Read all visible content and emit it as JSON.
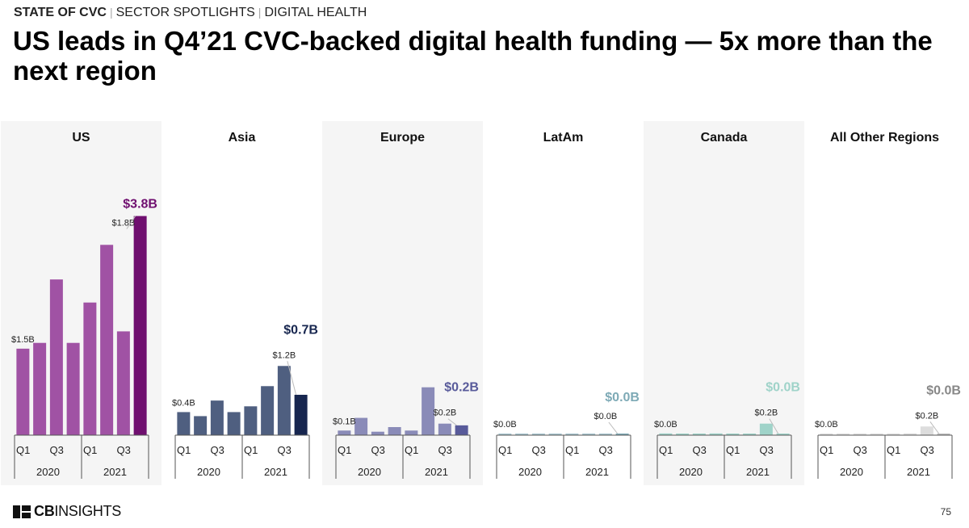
{
  "header": {
    "breadcrumb": [
      "STATE OF CVC",
      "SECTOR SPOTLIGHTS",
      "DIGITAL HEALTH"
    ],
    "title": "US leads in Q4’21 CVC-backed digital health funding — 5x more than the next region"
  },
  "footer": {
    "logo_bold": "CB",
    "logo_rest": "INSIGHTS",
    "page_number": "75"
  },
  "chart_data": [
    {
      "type": "bar",
      "region": "US",
      "shaded": true,
      "quarter_labels": [
        "Q1",
        "Q3",
        "Q1",
        "Q3"
      ],
      "years": [
        "2020",
        "2021"
      ],
      "values": [
        1.5,
        1.6,
        2.7,
        1.6,
        2.3,
        3.3,
        1.8,
        3.8
      ],
      "ylim": [
        0,
        4.2
      ],
      "colors": [
        "#a052a4",
        "#a052a4",
        "#a052a4",
        "#a052a4",
        "#a052a4",
        "#a052a4",
        "#a052a4",
        "#6f0f6f"
      ],
      "label_color": "#6f0f6f",
      "first_label": "$1.5B",
      "prev_label": "$1.8B",
      "last_label": "$3.8B"
    },
    {
      "type": "bar",
      "region": "Asia",
      "shaded": false,
      "quarter_labels": [
        "Q1",
        "Q3",
        "Q1",
        "Q3"
      ],
      "years": [
        "2020",
        "2021"
      ],
      "values": [
        0.4,
        0.33,
        0.6,
        0.4,
        0.5,
        0.85,
        1.2,
        0.7
      ],
      "ylim": [
        0,
        4.2
      ],
      "colors": [
        "#4f5f80",
        "#4f5f80",
        "#4f5f80",
        "#4f5f80",
        "#4f5f80",
        "#4f5f80",
        "#4f5f80",
        "#17264f"
      ],
      "label_color": "#17264f",
      "first_label": "$0.4B",
      "prev_label": "$1.2B",
      "last_label": "$0.7B"
    },
    {
      "type": "bar",
      "region": "Europe",
      "shaded": true,
      "quarter_labels": [
        "Q1",
        "Q3",
        "Q1",
        "Q3"
      ],
      "years": [
        "2020",
        "2021"
      ],
      "values": [
        0.08,
        0.3,
        0.06,
        0.14,
        0.08,
        0.83,
        0.2,
        0.17
      ],
      "ylim": [
        0,
        4.2
      ],
      "colors": [
        "#8a8bb8",
        "#8a8bb8",
        "#8a8bb8",
        "#8a8bb8",
        "#8a8bb8",
        "#8a8bb8",
        "#8a8bb8",
        "#585a9a"
      ],
      "label_color": "#585a9a",
      "first_label": "$0.1B",
      "prev_label": "$0.2B",
      "last_label": "$0.2B"
    },
    {
      "type": "bar",
      "region": "LatAm",
      "shaded": false,
      "quarter_labels": [
        "Q1",
        "Q3",
        "Q1",
        "Q3"
      ],
      "years": [
        "2020",
        "2021"
      ],
      "values": [
        0.01,
        0.005,
        0.005,
        0.005,
        0.005,
        0.005,
        0.005,
        0.005
      ],
      "ylim": [
        0,
        4.2
      ],
      "colors": [
        "#a8c5cf",
        "#a8c5cf",
        "#a8c5cf",
        "#a8c5cf",
        "#a8c5cf",
        "#a8c5cf",
        "#a8c5cf",
        "#7eaab6"
      ],
      "label_color": "#7eaab6",
      "first_label": "$0.0B",
      "prev_label": "$0.0B",
      "last_label": "$0.0B"
    },
    {
      "type": "bar",
      "region": "Canada",
      "shaded": true,
      "quarter_labels": [
        "Q1",
        "Q3",
        "Q1",
        "Q3"
      ],
      "years": [
        "2020",
        "2021"
      ],
      "values": [
        0.03,
        0.01,
        0.01,
        0.03,
        0.02,
        0.01,
        0.2,
        0.01
      ],
      "ylim": [
        0,
        4.2
      ],
      "colors": [
        "#9fd3c9",
        "#9fd3c9",
        "#9fd3c9",
        "#9fd3c9",
        "#9fd3c9",
        "#9fd3c9",
        "#9fd3c9",
        "#9fd3c9"
      ],
      "label_color": "#9fd3c9",
      "first_label": "$0.0B",
      "prev_label": "$0.2B",
      "last_label": "$0.0B"
    },
    {
      "type": "bar",
      "region": "All Other Regions",
      "shaded": false,
      "quarter_labels": [
        "Q1",
        "Q3",
        "Q1",
        "Q3"
      ],
      "years": [
        "2020",
        "2021"
      ],
      "values": [
        0.005,
        0.005,
        0.005,
        0.005,
        0.005,
        0.03,
        0.15,
        0.005
      ],
      "ylim": [
        0,
        4.2
      ],
      "colors": [
        "#dddddd",
        "#dddddd",
        "#dddddd",
        "#dddddd",
        "#dddddd",
        "#dddddd",
        "#dddddd",
        "#bdbdbd"
      ],
      "label_color": "#888888",
      "first_label": "$0.0B",
      "prev_label": "$0.2B",
      "last_label": "$0.0B"
    }
  ]
}
